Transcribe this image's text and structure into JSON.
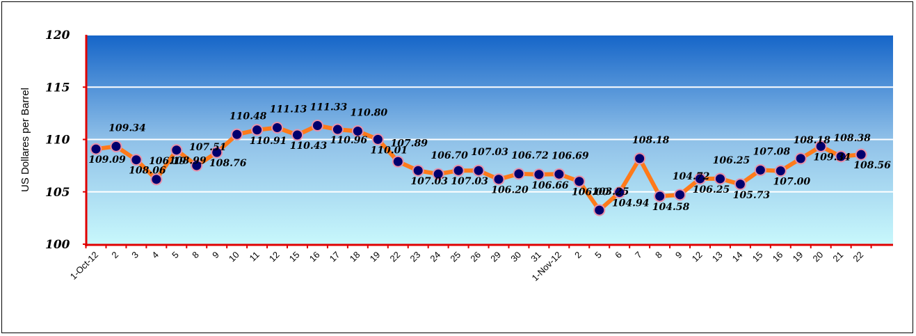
{
  "chart_data": {
    "type": "line",
    "ylabel": "US  Dollares per Barrel",
    "ylim": [
      100,
      120
    ],
    "yticks": [
      "100",
      "105",
      "110",
      "115",
      "120"
    ],
    "grid": true,
    "legend": "none",
    "categories": [
      "1-Oct-12",
      "2",
      "3",
      "4",
      "5",
      "8",
      "9",
      "10",
      "11",
      "12",
      "15",
      "16",
      "17",
      "18",
      "19",
      "22",
      "23",
      "24",
      "25",
      "26",
      "29",
      "30",
      "31",
      "1-Nov-12",
      "2",
      "5",
      "6",
      "7",
      "8",
      "9",
      "12",
      "13",
      "14",
      "15",
      "16",
      "19",
      "20",
      "21",
      "22"
    ],
    "values": [
      109.09,
      109.34,
      108.06,
      106.19,
      108.99,
      107.51,
      108.76,
      110.48,
      110.91,
      111.13,
      110.43,
      111.33,
      110.96,
      110.8,
      110.01,
      107.89,
      107.03,
      106.7,
      107.03,
      107.03,
      106.2,
      106.72,
      106.66,
      106.69,
      106.0,
      103.25,
      104.94,
      108.18,
      104.58,
      104.72,
      106.25,
      106.25,
      105.73,
      107.08,
      107.0,
      108.18,
      109.34,
      108.38,
      108.56
    ],
    "data_labels": [
      "109.09",
      "109.34",
      "108.06",
      "106.19",
      "108.99",
      "107.51",
      "108.76",
      "110.48",
      "110.91",
      "111.13",
      "110.43",
      "111.33",
      "110.96",
      "110.80",
      "110.01",
      "107.89",
      "107.03",
      "106.70",
      "107.03",
      "107.03",
      "106.20",
      "106.72",
      "106.66",
      "106.69",
      "106.00",
      "103.25",
      "104.94",
      "108.18",
      "104.58",
      "104.72",
      "106.25",
      "106.25",
      "105.73",
      "107.08",
      "107.00",
      "108.18",
      "109.34",
      "108.38",
      "108.56"
    ],
    "colors": {
      "plot_top": "#1565C8",
      "plot_bottom": "#C8F8FC",
      "line": "#FF7A1A",
      "marker_fill": "#00006E",
      "marker_edge": "#E890A8",
      "axis": "#E00000",
      "grid": "#FFFFFF"
    }
  }
}
